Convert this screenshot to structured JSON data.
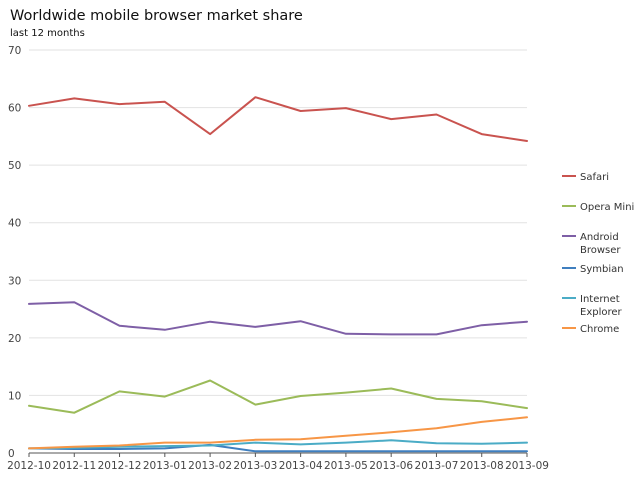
{
  "chart_data": {
    "type": "line",
    "title": "Worldwide mobile browser market share",
    "subtitle": "last 12 months",
    "xlabel": "",
    "ylabel": "",
    "categories": [
      "2012-10",
      "2012-11",
      "2012-12",
      "2013-01",
      "2013-02",
      "2013-03",
      "2013-04",
      "2013-05",
      "2013-06",
      "2013-07",
      "2013-08",
      "2013-09"
    ],
    "yticks": [
      "0",
      "10",
      "20",
      "30",
      "40",
      "50",
      "60",
      "70"
    ],
    "ylim": [
      0,
      70
    ],
    "grid": true,
    "legend_position": "right",
    "series": [
      {
        "name": "Safari",
        "color": "#c9534f",
        "values": [
          60.3,
          61.6,
          60.6,
          61.0,
          55.4,
          61.8,
          59.4,
          59.9,
          58.0,
          58.8,
          55.4,
          54.2
        ]
      },
      {
        "name": "Opera Mini",
        "color": "#9bbb59",
        "values": [
          8.2,
          7.0,
          10.7,
          9.8,
          12.6,
          8.4,
          9.9,
          10.5,
          11.2,
          9.4,
          9.0,
          7.8
        ]
      },
      {
        "name": "Android Browser",
        "color": "#7e5fa6",
        "values": [
          25.9,
          26.2,
          22.1,
          21.4,
          22.8,
          21.9,
          22.9,
          20.7,
          20.6,
          20.6,
          22.2,
          22.8
        ]
      },
      {
        "name": "Symbian",
        "color": "#3f7fbf",
        "values": [
          0.8,
          0.7,
          0.7,
          0.8,
          1.4,
          0.3,
          0.3,
          0.3,
          0.3,
          0.3,
          0.3,
          0.3
        ]
      },
      {
        "name": "Internet Explorer",
        "color": "#4bacc6",
        "values": [
          0.8,
          0.9,
          1.1,
          1.2,
          1.3,
          1.8,
          1.5,
          1.8,
          2.2,
          1.7,
          1.6,
          1.8
        ]
      },
      {
        "name": "Chrome",
        "color": "#f79646",
        "values": [
          0.8,
          1.1,
          1.3,
          1.8,
          1.8,
          2.3,
          2.4,
          3.0,
          3.6,
          4.3,
          5.4,
          6.2
        ]
      }
    ],
    "legend_labels": [
      [
        "Safari"
      ],
      [
        "Opera Mini"
      ],
      [
        "Android",
        "Browser"
      ],
      [
        "Symbian"
      ],
      [
        "Internet",
        "Explorer"
      ],
      [
        "Chrome"
      ]
    ]
  }
}
